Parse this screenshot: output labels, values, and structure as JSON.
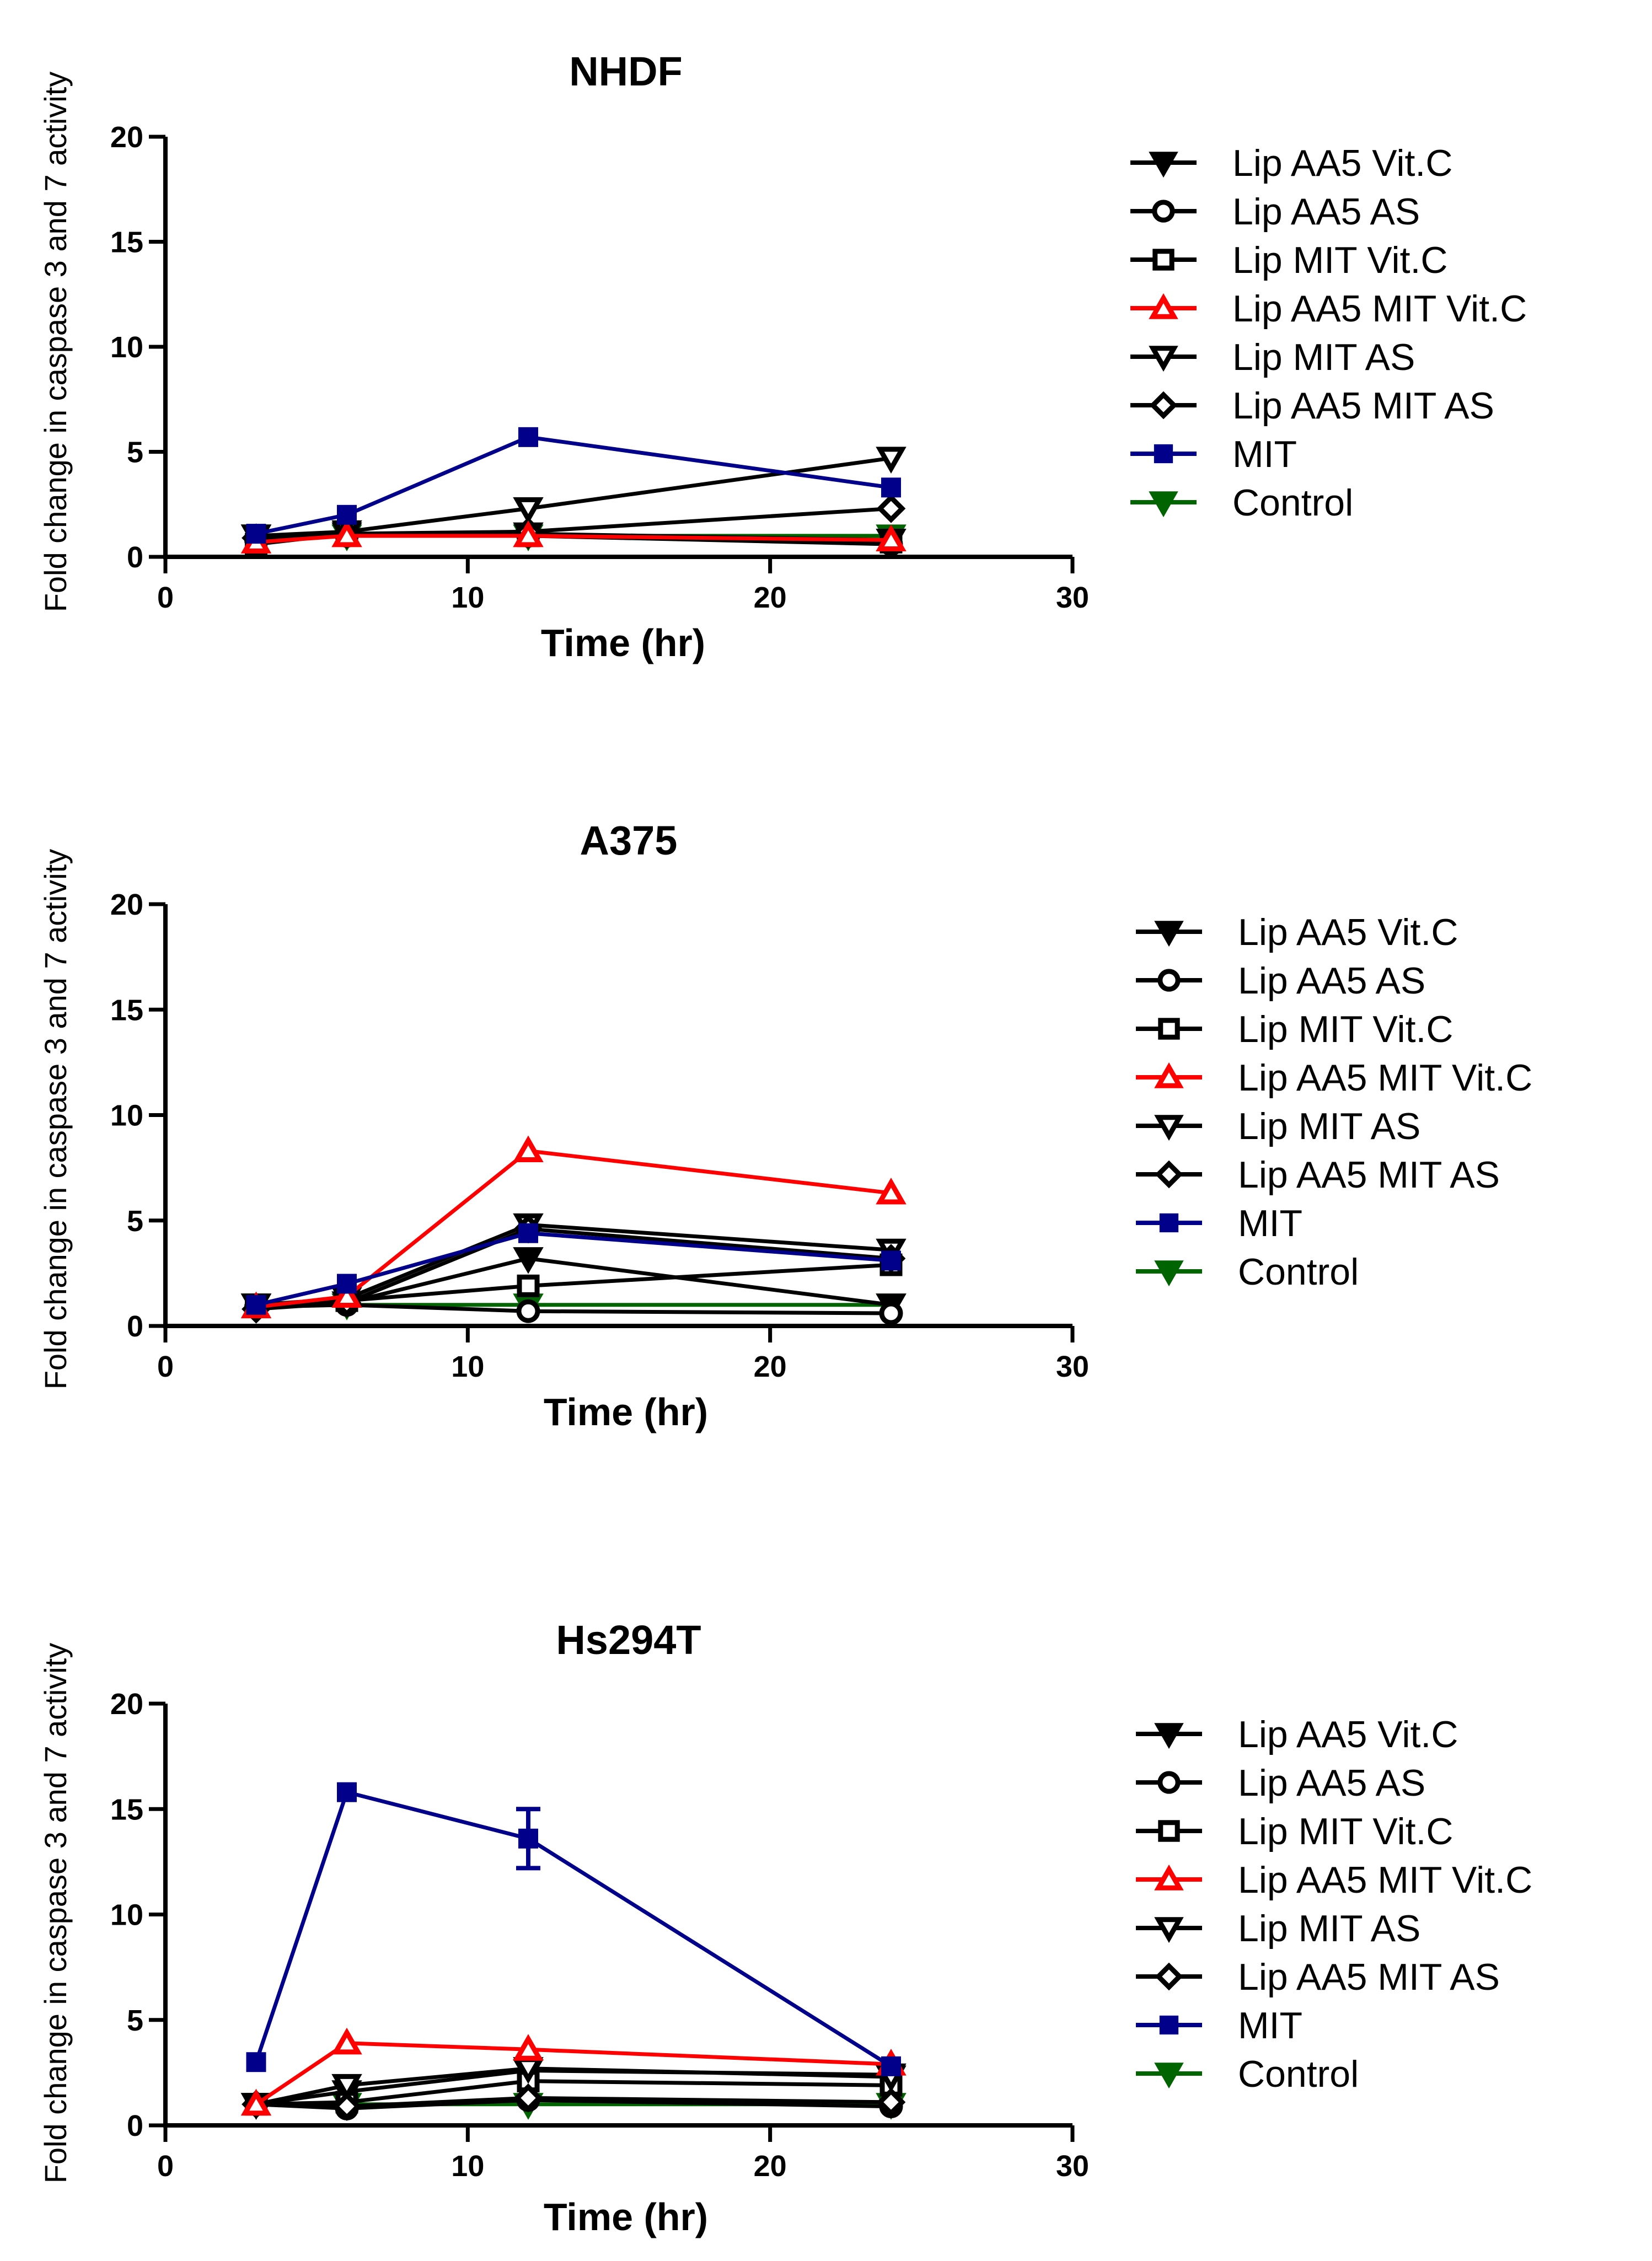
{
  "page_title": "Fold change in caspase 3 and 7 activity (NHDF, A375, Hs294T)",
  "legend_entries": [
    {
      "label": "Lip AA5 Vit.C",
      "color": "#000000",
      "marker": "triangle-down-filled"
    },
    {
      "label": "Lip AA5 AS",
      "color": "#000000",
      "marker": "circle-open"
    },
    {
      "label": "Lip MIT Vit.C",
      "color": "#000000",
      "marker": "square-open"
    },
    {
      "label": "Lip AA5 MIT Vit.C",
      "color": "#ff0000",
      "marker": "triangle-up-open"
    },
    {
      "label": "Lip MIT AS",
      "color": "#000000",
      "marker": "triangle-down-open"
    },
    {
      "label": "Lip AA5 MIT AS",
      "color": "#000000",
      "marker": "diamond-open"
    },
    {
      "label": "MIT",
      "color": "#00008b",
      "marker": "square-filled"
    },
    {
      "label": "Control",
      "color": "#006400",
      "marker": "triangle-down-filled"
    }
  ],
  "chart_data": [
    {
      "type": "line",
      "title": "NHDF",
      "xlabel": "Time (hr)",
      "ylabel": "Fold change in caspase 3 and 7 activity",
      "xlim": [
        0,
        30
      ],
      "ylim": [
        0,
        20
      ],
      "xticks": [
        0,
        10,
        20,
        30
      ],
      "yticks": [
        0,
        5,
        10,
        15,
        20
      ],
      "x": [
        3,
        6,
        12,
        24
      ],
      "series": [
        {
          "name": "Lip AA5 Vit.C",
          "values": [
            1.0,
            1.1,
            1.1,
            0.8
          ]
        },
        {
          "name": "Lip AA5 AS",
          "values": [
            0.8,
            1.0,
            1.0,
            0.6
          ]
        },
        {
          "name": "Lip MIT Vit.C",
          "values": [
            0.6,
            1.1,
            1.0,
            0.7
          ]
        },
        {
          "name": "Lip AA5 MIT Vit.C",
          "values": [
            0.7,
            1.0,
            1.0,
            0.8
          ]
        },
        {
          "name": "Lip MIT AS",
          "values": [
            1.0,
            1.2,
            2.3,
            4.7
          ]
        },
        {
          "name": "Lip AA5 MIT AS",
          "values": [
            0.9,
            1.1,
            1.2,
            2.3
          ]
        },
        {
          "name": "MIT",
          "values": [
            1.1,
            2.0,
            5.7,
            3.3
          ]
        },
        {
          "name": "Control",
          "values": [
            1.0,
            1.0,
            1.0,
            1.0
          ]
        }
      ]
    },
    {
      "type": "line",
      "title": "A375",
      "xlabel": "Time (hr)",
      "ylabel": "Fold change in caspase 3 and 7 activity",
      "xlim": [
        0,
        30
      ],
      "ylim": [
        0,
        20
      ],
      "xticks": [
        0,
        10,
        20,
        30
      ],
      "yticks": [
        0,
        5,
        10,
        15,
        20
      ],
      "x": [
        3,
        6,
        12,
        24
      ],
      "series": [
        {
          "name": "Lip AA5 Vit.C",
          "values": [
            1.0,
            1.1,
            3.2,
            1.0
          ]
        },
        {
          "name": "Lip AA5 AS",
          "values": [
            0.9,
            1.0,
            0.7,
            0.6
          ]
        },
        {
          "name": "Lip MIT Vit.C",
          "values": [
            1.0,
            1.2,
            1.9,
            2.9
          ]
        },
        {
          "name": "Lip AA5 MIT Vit.C",
          "values": [
            0.9,
            1.4,
            8.3,
            6.3
          ]
        },
        {
          "name": "Lip MIT AS",
          "values": [
            1.0,
            1.3,
            4.8,
            3.6
          ]
        },
        {
          "name": "Lip AA5 MIT AS",
          "values": [
            0.8,
            1.1,
            4.6,
            3.2
          ]
        },
        {
          "name": "MIT",
          "values": [
            1.0,
            2.0,
            4.4,
            3.1
          ]
        },
        {
          "name": "Control",
          "values": [
            1.0,
            1.0,
            1.0,
            1.0
          ]
        }
      ]
    },
    {
      "type": "line",
      "title": "Hs294T",
      "xlabel": "Time (hr)",
      "ylabel": "Fold change in caspase 3 and 7 activity",
      "xlim": [
        0,
        30
      ],
      "ylim": [
        0,
        20
      ],
      "xticks": [
        0,
        10,
        20,
        30
      ],
      "yticks": [
        0,
        5,
        10,
        15,
        20
      ],
      "x": [
        3,
        6,
        12,
        24
      ],
      "series": [
        {
          "name": "Lip AA5 Vit.C",
          "values": [
            1.0,
            1.6,
            2.6,
            2.4
          ]
        },
        {
          "name": "Lip AA5 AS",
          "values": [
            1.0,
            0.8,
            1.2,
            0.9
          ]
        },
        {
          "name": "Lip MIT Vit.C",
          "values": [
            1.0,
            1.1,
            2.1,
            1.9
          ]
        },
        {
          "name": "Lip AA5 MIT Vit.C",
          "values": [
            1.0,
            3.9,
            3.6,
            2.9
          ]
        },
        {
          "name": "Lip MIT AS",
          "values": [
            1.0,
            1.9,
            2.7,
            2.3
          ]
        },
        {
          "name": "Lip AA5 MIT AS",
          "values": [
            1.0,
            0.9,
            1.3,
            1.1
          ]
        },
        {
          "name": "MIT",
          "values": [
            3.0,
            15.8,
            13.6,
            2.8
          ],
          "error": [
            0,
            0,
            1.4,
            0
          ]
        },
        {
          "name": "Control",
          "values": [
            1.0,
            1.0,
            1.0,
            1.0
          ]
        }
      ]
    }
  ]
}
